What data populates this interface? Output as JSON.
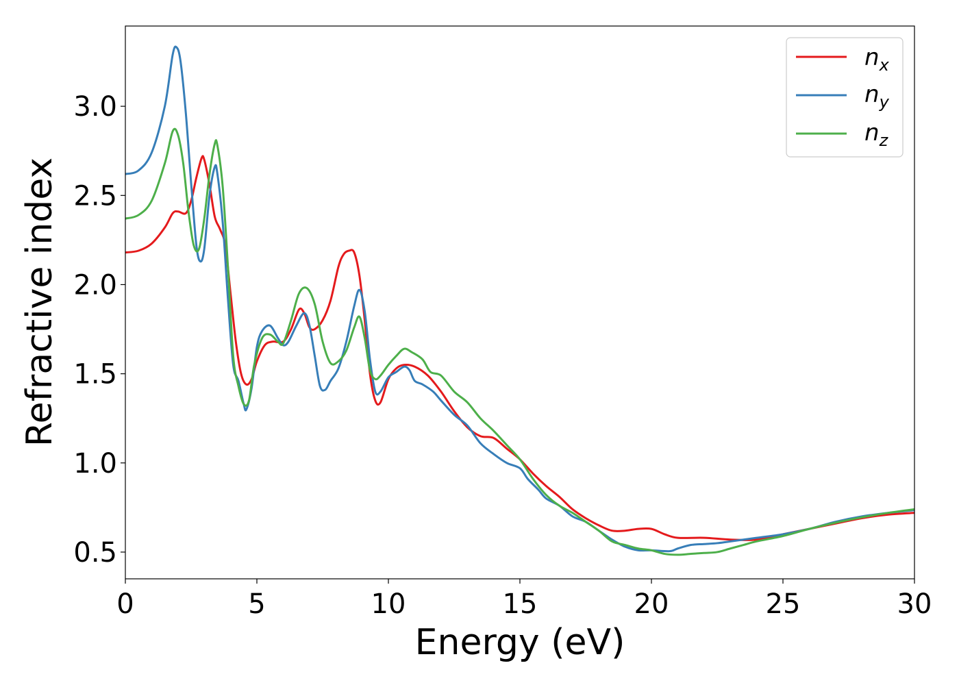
{
  "chart_data": {
    "type": "line",
    "title": "",
    "xlabel": "Energy (eV)",
    "ylabel": "Refractive index",
    "xlim": [
      0,
      30
    ],
    "ylim": [
      0.35,
      3.45
    ],
    "xticks": [
      0,
      5,
      10,
      15,
      20,
      25,
      30
    ],
    "yticks": [
      0.5,
      1.0,
      1.5,
      2.0,
      2.5,
      3.0
    ],
    "xtick_labels": [
      "0",
      "5",
      "10",
      "15",
      "20",
      "25",
      "30"
    ],
    "ytick_labels": [
      "0.5",
      "1.0",
      "1.5",
      "2.0",
      "2.5",
      "3.0"
    ],
    "grid": false,
    "legend_position": "top-right",
    "series": [
      {
        "name": "n_x",
        "legend_main": "n",
        "legend_sub": "x",
        "color": "#e41a1c",
        "points": [
          [
            0,
            2.18
          ],
          [
            0.5,
            2.19
          ],
          [
            1.0,
            2.23
          ],
          [
            1.5,
            2.32
          ],
          [
            1.8,
            2.4
          ],
          [
            2.0,
            2.41
          ],
          [
            2.3,
            2.4
          ],
          [
            2.5,
            2.47
          ],
          [
            2.7,
            2.6
          ],
          [
            2.9,
            2.71
          ],
          [
            3.0,
            2.7
          ],
          [
            3.2,
            2.56
          ],
          [
            3.4,
            2.38
          ],
          [
            3.6,
            2.31
          ],
          [
            3.8,
            2.22
          ],
          [
            4.0,
            1.95
          ],
          [
            4.2,
            1.68
          ],
          [
            4.4,
            1.5
          ],
          [
            4.6,
            1.44
          ],
          [
            4.8,
            1.47
          ],
          [
            5.0,
            1.57
          ],
          [
            5.3,
            1.66
          ],
          [
            5.6,
            1.68
          ],
          [
            6.0,
            1.68
          ],
          [
            6.3,
            1.75
          ],
          [
            6.6,
            1.86
          ],
          [
            6.8,
            1.84
          ],
          [
            7.0,
            1.76
          ],
          [
            7.2,
            1.75
          ],
          [
            7.5,
            1.8
          ],
          [
            7.8,
            1.91
          ],
          [
            8.1,
            2.1
          ],
          [
            8.3,
            2.17
          ],
          [
            8.5,
            2.19
          ],
          [
            8.7,
            2.18
          ],
          [
            8.9,
            2.05
          ],
          [
            9.1,
            1.8
          ],
          [
            9.3,
            1.5
          ],
          [
            9.5,
            1.35
          ],
          [
            9.7,
            1.34
          ],
          [
            10.0,
            1.47
          ],
          [
            10.3,
            1.53
          ],
          [
            10.6,
            1.55
          ],
          [
            11.0,
            1.54
          ],
          [
            11.5,
            1.49
          ],
          [
            12.0,
            1.4
          ],
          [
            12.5,
            1.29
          ],
          [
            13.0,
            1.2
          ],
          [
            13.5,
            1.15
          ],
          [
            14.0,
            1.14
          ],
          [
            14.5,
            1.08
          ],
          [
            15.0,
            1.02
          ],
          [
            15.5,
            0.94
          ],
          [
            16.0,
            0.87
          ],
          [
            16.5,
            0.81
          ],
          [
            17.0,
            0.74
          ],
          [
            17.5,
            0.69
          ],
          [
            18.0,
            0.65
          ],
          [
            18.5,
            0.62
          ],
          [
            19.0,
            0.62
          ],
          [
            19.5,
            0.63
          ],
          [
            20.0,
            0.63
          ],
          [
            20.5,
            0.6
          ],
          [
            21.0,
            0.58
          ],
          [
            22.0,
            0.58
          ],
          [
            23.0,
            0.57
          ],
          [
            24.0,
            0.57
          ],
          [
            25.0,
            0.6
          ],
          [
            26.0,
            0.63
          ],
          [
            27.0,
            0.66
          ],
          [
            28.0,
            0.69
          ],
          [
            29.0,
            0.71
          ],
          [
            30.0,
            0.72
          ]
        ]
      },
      {
        "name": "n_y",
        "legend_main": "n",
        "legend_sub": "y",
        "color": "#377eb8",
        "points": [
          [
            0,
            2.62
          ],
          [
            0.5,
            2.64
          ],
          [
            1.0,
            2.74
          ],
          [
            1.5,
            3.0
          ],
          [
            1.8,
            3.29
          ],
          [
            1.95,
            3.33
          ],
          [
            2.1,
            3.25
          ],
          [
            2.3,
            2.96
          ],
          [
            2.5,
            2.57
          ],
          [
            2.7,
            2.22
          ],
          [
            2.85,
            2.13
          ],
          [
            3.0,
            2.2
          ],
          [
            3.2,
            2.5
          ],
          [
            3.4,
            2.66
          ],
          [
            3.5,
            2.62
          ],
          [
            3.7,
            2.35
          ],
          [
            3.9,
            1.92
          ],
          [
            4.1,
            1.55
          ],
          [
            4.3,
            1.46
          ],
          [
            4.5,
            1.33
          ],
          [
            4.6,
            1.3
          ],
          [
            4.8,
            1.42
          ],
          [
            5.0,
            1.65
          ],
          [
            5.2,
            1.74
          ],
          [
            5.5,
            1.77
          ],
          [
            5.8,
            1.7
          ],
          [
            6.0,
            1.66
          ],
          [
            6.2,
            1.68
          ],
          [
            6.5,
            1.77
          ],
          [
            6.8,
            1.84
          ],
          [
            7.0,
            1.77
          ],
          [
            7.2,
            1.6
          ],
          [
            7.4,
            1.43
          ],
          [
            7.6,
            1.41
          ],
          [
            7.8,
            1.46
          ],
          [
            8.1,
            1.53
          ],
          [
            8.4,
            1.68
          ],
          [
            8.7,
            1.88
          ],
          [
            8.9,
            1.97
          ],
          [
            9.1,
            1.85
          ],
          [
            9.3,
            1.58
          ],
          [
            9.5,
            1.4
          ],
          [
            9.7,
            1.4
          ],
          [
            10.0,
            1.48
          ],
          [
            10.3,
            1.51
          ],
          [
            10.6,
            1.54
          ],
          [
            10.8,
            1.52
          ],
          [
            11.0,
            1.46
          ],
          [
            11.3,
            1.44
          ],
          [
            11.7,
            1.4
          ],
          [
            12.0,
            1.35
          ],
          [
            12.5,
            1.27
          ],
          [
            13.0,
            1.21
          ],
          [
            13.5,
            1.11
          ],
          [
            14.0,
            1.05
          ],
          [
            14.5,
            1.0
          ],
          [
            15.0,
            0.97
          ],
          [
            15.3,
            0.91
          ],
          [
            15.7,
            0.85
          ],
          [
            16.0,
            0.8
          ],
          [
            16.5,
            0.76
          ],
          [
            17.0,
            0.7
          ],
          [
            17.5,
            0.67
          ],
          [
            18.0,
            0.62
          ],
          [
            18.5,
            0.57
          ],
          [
            19.0,
            0.53
          ],
          [
            19.5,
            0.51
          ],
          [
            20.0,
            0.51
          ],
          [
            20.7,
            0.505
          ],
          [
            21.0,
            0.52
          ],
          [
            21.5,
            0.54
          ],
          [
            22.0,
            0.545
          ],
          [
            22.5,
            0.55
          ],
          [
            23.0,
            0.56
          ],
          [
            24.0,
            0.58
          ],
          [
            25.0,
            0.6
          ],
          [
            26.0,
            0.63
          ],
          [
            27.0,
            0.67
          ],
          [
            28.0,
            0.7
          ],
          [
            29.0,
            0.72
          ],
          [
            30.0,
            0.735
          ]
        ]
      },
      {
        "name": "n_z",
        "legend_main": "n",
        "legend_sub": "z",
        "color": "#4daf4a",
        "points": [
          [
            0,
            2.37
          ],
          [
            0.5,
            2.39
          ],
          [
            1.0,
            2.47
          ],
          [
            1.5,
            2.68
          ],
          [
            1.8,
            2.86
          ],
          [
            2.0,
            2.84
          ],
          [
            2.2,
            2.68
          ],
          [
            2.4,
            2.41
          ],
          [
            2.6,
            2.22
          ],
          [
            2.8,
            2.2
          ],
          [
            3.0,
            2.37
          ],
          [
            3.2,
            2.62
          ],
          [
            3.4,
            2.79
          ],
          [
            3.5,
            2.78
          ],
          [
            3.7,
            2.55
          ],
          [
            3.9,
            2.1
          ],
          [
            4.1,
            1.6
          ],
          [
            4.3,
            1.43
          ],
          [
            4.5,
            1.33
          ],
          [
            4.7,
            1.35
          ],
          [
            4.9,
            1.55
          ],
          [
            5.2,
            1.7
          ],
          [
            5.5,
            1.72
          ],
          [
            5.8,
            1.68
          ],
          [
            6.0,
            1.67
          ],
          [
            6.3,
            1.8
          ],
          [
            6.6,
            1.95
          ],
          [
            6.9,
            1.98
          ],
          [
            7.2,
            1.89
          ],
          [
            7.5,
            1.68
          ],
          [
            7.8,
            1.56
          ],
          [
            8.1,
            1.57
          ],
          [
            8.4,
            1.63
          ],
          [
            8.7,
            1.76
          ],
          [
            8.9,
            1.82
          ],
          [
            9.1,
            1.7
          ],
          [
            9.3,
            1.52
          ],
          [
            9.5,
            1.47
          ],
          [
            9.7,
            1.49
          ],
          [
            10.0,
            1.55
          ],
          [
            10.3,
            1.6
          ],
          [
            10.6,
            1.64
          ],
          [
            10.9,
            1.62
          ],
          [
            11.3,
            1.58
          ],
          [
            11.6,
            1.51
          ],
          [
            12.0,
            1.49
          ],
          [
            12.5,
            1.4
          ],
          [
            13.0,
            1.34
          ],
          [
            13.5,
            1.25
          ],
          [
            14.0,
            1.18
          ],
          [
            14.5,
            1.1
          ],
          [
            15.0,
            1.02
          ],
          [
            15.5,
            0.91
          ],
          [
            16.0,
            0.82
          ],
          [
            16.5,
            0.76
          ],
          [
            17.0,
            0.72
          ],
          [
            17.5,
            0.67
          ],
          [
            18.0,
            0.62
          ],
          [
            18.5,
            0.56
          ],
          [
            19.0,
            0.54
          ],
          [
            19.5,
            0.52
          ],
          [
            20.0,
            0.51
          ],
          [
            20.5,
            0.49
          ],
          [
            21.0,
            0.485
          ],
          [
            21.5,
            0.49
          ],
          [
            22.0,
            0.495
          ],
          [
            22.5,
            0.5
          ],
          [
            23.0,
            0.52
          ],
          [
            23.5,
            0.54
          ],
          [
            24.0,
            0.56
          ],
          [
            25.0,
            0.59
          ],
          [
            26.0,
            0.63
          ],
          [
            27.0,
            0.665
          ],
          [
            28.0,
            0.695
          ],
          [
            29.0,
            0.72
          ],
          [
            30.0,
            0.74
          ]
        ]
      }
    ]
  }
}
